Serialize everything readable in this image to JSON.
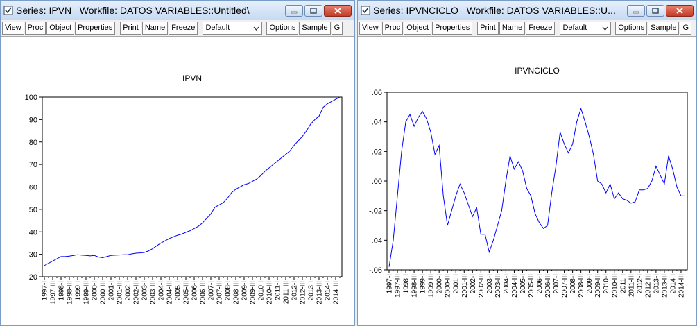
{
  "windows": [
    {
      "title": "Series: IPVN   Workfile: DATOS VARIABLES::Untitled\\",
      "toolbar": [
        [
          "View",
          "Proc",
          "Object",
          "Properties"
        ],
        [
          "Print",
          "Name",
          "Freeze"
        ]
      ],
      "dropdown": "Default",
      "toolbar2": [
        "Options",
        "Sample",
        "G"
      ]
    },
    {
      "title": "Series: IPVNCICLO   Workfile: DATOS VARIABLES::U...",
      "toolbar": [
        [
          "View",
          "Proc",
          "Object",
          "Properties"
        ],
        [
          "Print",
          "Name",
          "Freeze"
        ]
      ],
      "dropdown": "Default",
      "toolbar2": [
        "Options",
        "Sample",
        "G"
      ]
    }
  ],
  "chart_data": [
    {
      "type": "line",
      "title": "IPVN",
      "categories": [
        "1997-I",
        null,
        "1997-III",
        null,
        "1998-I",
        null,
        "1998-III",
        null,
        "1999-I",
        null,
        "1999-III",
        null,
        "2000-I",
        null,
        "2000-III",
        null,
        "2001-I",
        null,
        "2001-III",
        null,
        "2002-I",
        null,
        "2002-III",
        null,
        "2003-I",
        null,
        "2003-III",
        null,
        "2004-I",
        null,
        "2004-III",
        null,
        "2005-I",
        null,
        "2005-III",
        null,
        "2006-I",
        null,
        "2006-III",
        null,
        "2007-I",
        null,
        "2007-III",
        null,
        "2008-I",
        null,
        "2008-III",
        null,
        "2009-I",
        null,
        "2009-III",
        null,
        "2010-I",
        null,
        "2010-III",
        null,
        "2011-I",
        null,
        "2011-III",
        null,
        "2012-I",
        null,
        "2012-III",
        null,
        "2013-I",
        null,
        "2013-III",
        null,
        "2014-I",
        null,
        "2014-III",
        null
      ],
      "series": [
        {
          "name": "IPVN",
          "color": "#0000ff",
          "values": [
            25,
            26,
            27,
            28,
            29,
            29,
            29.2,
            29.5,
            29.8,
            29.6,
            29.5,
            29.3,
            29.5,
            28.8,
            28.5,
            29,
            29.5,
            29.6,
            29.7,
            29.8,
            29.8,
            30.2,
            30.5,
            30.6,
            30.8,
            31.5,
            32.5,
            33.8,
            35,
            36,
            37,
            37.8,
            38.5,
            39,
            39.8,
            40.5,
            41.5,
            42.5,
            44,
            46,
            48,
            51,
            52,
            53,
            55,
            57.5,
            59,
            60,
            61,
            61.5,
            62.5,
            63.5,
            65,
            67,
            68.5,
            70,
            71.5,
            73,
            74.5,
            76,
            78.5,
            80.5,
            82.5,
            85,
            88,
            90,
            91.5,
            95.5,
            97,
            98,
            99,
            100
          ]
        }
      ],
      "ylim": [
        20,
        100
      ],
      "yticks": [
        20,
        30,
        40,
        50,
        60,
        70,
        80,
        90,
        100
      ]
    },
    {
      "type": "line",
      "title": "IPVNCICLO",
      "categories": [
        "1997-I",
        null,
        "1997-III",
        null,
        "1998-I",
        null,
        "1998-III",
        null,
        "1999-I",
        null,
        "1999-III",
        null,
        "2000-I",
        null,
        "2000-III",
        null,
        "2001-I",
        null,
        "2001-III",
        null,
        "2002-I",
        null,
        "2002-III",
        null,
        "2003-I",
        null,
        "2003-III",
        null,
        "2004-I",
        null,
        "2004-III",
        null,
        "2005-I",
        null,
        "2005-III",
        null,
        "2006-I",
        null,
        "2006-III",
        null,
        "2007-I",
        null,
        "2007-III",
        null,
        "2008-I",
        null,
        "2008-III",
        null,
        "2009-I",
        null,
        "2009-III",
        null,
        "2010-I",
        null,
        "2010-III",
        null,
        "2011-I",
        null,
        "2011-III",
        null,
        "2012-I",
        null,
        "2012-III",
        null,
        "2013-I",
        null,
        "2013-III",
        null,
        "2014-I",
        null,
        "2014-III",
        null
      ],
      "series": [
        {
          "name": "IPVNCICLO",
          "color": "#0000ff",
          "values": [
            -0.058,
            -0.04,
            -0.01,
            0.02,
            0.04,
            0.045,
            0.037,
            0.043,
            0.047,
            0.042,
            0.033,
            0.018,
            0.024,
            -0.01,
            -0.03,
            -0.02,
            -0.01,
            -0.002,
            -0.008,
            -0.016,
            -0.024,
            -0.018,
            -0.036,
            -0.036,
            -0.048,
            -0.04,
            -0.03,
            -0.02,
            0.0,
            0.017,
            0.008,
            0.013,
            0.007,
            -0.005,
            -0.01,
            -0.022,
            -0.028,
            -0.032,
            -0.03,
            -0.008,
            0.01,
            0.033,
            0.025,
            0.019,
            0.025,
            0.04,
            0.049,
            0.04,
            0.03,
            0.018,
            0.0,
            -0.002,
            -0.008,
            -0.002,
            -0.012,
            -0.008,
            -0.012,
            -0.013,
            -0.015,
            -0.014,
            -0.006,
            -0.006,
            -0.005,
            0.0,
            0.01,
            0.004,
            -0.002,
            0.017,
            0.008,
            -0.004,
            -0.01,
            -0.01
          ]
        }
      ],
      "ylim": [
        -0.06,
        0.06
      ],
      "yticks": [
        {
          "value": -0.06,
          "label": "-.06"
        },
        {
          "value": -0.04,
          "label": "-.04"
        },
        {
          "value": -0.02,
          "label": "-.02"
        },
        {
          "value": 0,
          "label": ".00"
        },
        {
          "value": 0.02,
          "label": ".02"
        },
        {
          "value": 0.04,
          "label": ".04"
        },
        {
          "value": 0.06,
          "label": ".06"
        }
      ]
    }
  ]
}
